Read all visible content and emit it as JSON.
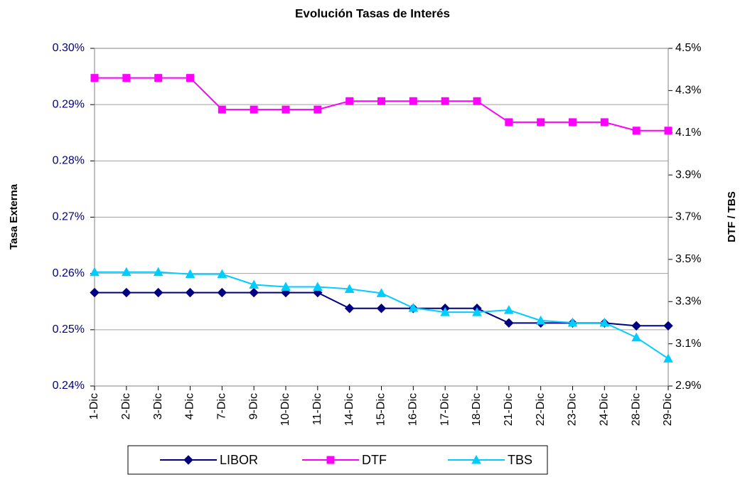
{
  "chart_data": {
    "type": "line",
    "title": "Evolución Tasas de Interés",
    "y_label": "Tasa Externa",
    "y2_label": "DTF / TBS",
    "categories": [
      "1-Dic",
      "2-Dic",
      "3-Dic",
      "4-Dic",
      "7-Dic",
      "9-Dic",
      "10-Dic",
      "11-Dic",
      "14-Dic",
      "15-Dic",
      "16-Dic",
      "17-Dic",
      "18-Dic",
      "21-Dic",
      "22-Dic",
      "23-Dic",
      "24-Dic",
      "28-Dic",
      "29-Dic"
    ],
    "series": [
      {
        "name": "LIBOR",
        "color": "#000080",
        "marker": "diamond",
        "axis": "y",
        "values": [
          0.2566,
          0.2566,
          0.2566,
          0.2566,
          0.2566,
          0.2566,
          0.2566,
          0.2566,
          0.2538,
          0.2538,
          0.2538,
          0.2538,
          0.2538,
          0.2512,
          0.2512,
          0.2512,
          0.2512,
          0.2507,
          0.2507
        ]
      },
      {
        "name": "DTF",
        "color": "#ff00ff",
        "marker": "square",
        "axis": "y2",
        "values": [
          4.36,
          4.36,
          4.36,
          4.36,
          4.21,
          4.21,
          4.21,
          4.21,
          4.25,
          4.25,
          4.25,
          4.25,
          4.25,
          4.15,
          4.15,
          4.15,
          4.15,
          4.11,
          4.11
        ]
      },
      {
        "name": "TBS",
        "color": "#00ccff",
        "marker": "triangle",
        "axis": "y2",
        "values": [
          3.44,
          3.44,
          3.44,
          3.43,
          3.43,
          3.38,
          3.37,
          3.37,
          3.36,
          3.34,
          3.27,
          3.25,
          3.25,
          3.26,
          3.21,
          3.2,
          3.2,
          3.13,
          3.03
        ]
      }
    ],
    "ylim": [
      0.24,
      0.3
    ],
    "yticks": [
      {
        "value": 0.24,
        "label": "0.24%"
      },
      {
        "value": 0.25,
        "label": "0.25%"
      },
      {
        "value": 0.26,
        "label": "0.26%"
      },
      {
        "value": 0.27,
        "label": "0.27%"
      },
      {
        "value": 0.28,
        "label": "0.28%"
      },
      {
        "value": 0.29,
        "label": "0.29%"
      },
      {
        "value": 0.3,
        "label": "0.30%"
      }
    ],
    "y2lim": [
      2.9,
      4.5
    ],
    "y2ticks": [
      {
        "value": 2.9,
        "label": "2.9%"
      },
      {
        "value": 3.1,
        "label": "3.1%"
      },
      {
        "value": 3.3,
        "label": "3.3%"
      },
      {
        "value": 3.5,
        "label": "3.5%"
      },
      {
        "value": 3.7,
        "label": "3.7%"
      },
      {
        "value": 3.9,
        "label": "3.9%"
      },
      {
        "value": 4.1,
        "label": "4.1%"
      },
      {
        "value": 4.3,
        "label": "4.3%"
      },
      {
        "value": 4.5,
        "label": "4.5%"
      }
    ],
    "grid": true,
    "legend": "bottom"
  }
}
